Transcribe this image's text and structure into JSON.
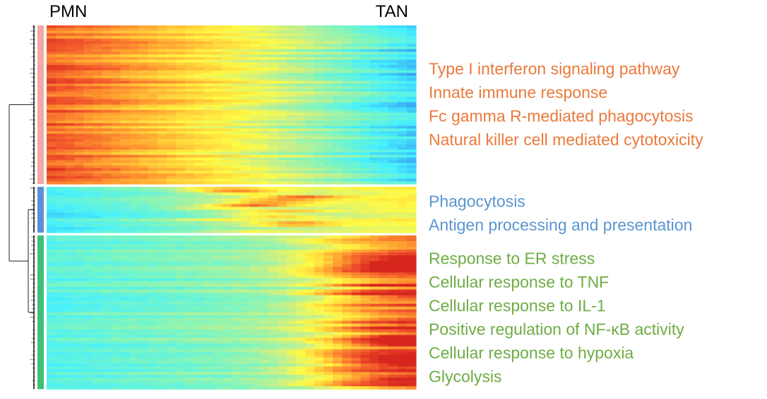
{
  "chart_data": {
    "type": "heatmap",
    "title": "",
    "columns": {
      "start_label": "PMN",
      "end_label": "TAN"
    },
    "colorscale": [
      "#2f6fe0",
      "#3bb2f5",
      "#46f0ff",
      "#7df5c0",
      "#c8f08a",
      "#fffa45",
      "#ffd23c",
      "#ff9a30",
      "#f25a2c",
      "#d7261e"
    ],
    "dendrogram": true,
    "clusters": [
      {
        "name": "",
        "color": "#f4a7a4",
        "label_color": "#ea7a3c",
        "rows": 60,
        "pattern": "high in PMN, low in TAN",
        "terms": [
          "Type I interferon signaling pathway",
          "Innate immune response",
          "Fc gamma R-mediated phagocytosis",
          "Natural killer cell mediated cytotoxicity"
        ]
      },
      {
        "name": "",
        "color": "#5b8fd6",
        "label_color": "#5b95d0",
        "rows": 16,
        "pattern": "low in PMN, intermediate peak, moderate in TAN",
        "terms": [
          "Phagocytosis",
          "Antigen processing and presentation"
        ]
      },
      {
        "name": "",
        "color": "#3fbf78",
        "label_color": "#6fac45",
        "rows": 54,
        "pattern": "low in PMN, high in TAN",
        "terms": [
          "Response to ER stress",
          "Cellular response to TNF",
          "Cellular response to IL-1",
          "Positive regulation of NF-κB activity",
          "Cellular response to hypoxia",
          "Glycolysis"
        ]
      }
    ]
  }
}
